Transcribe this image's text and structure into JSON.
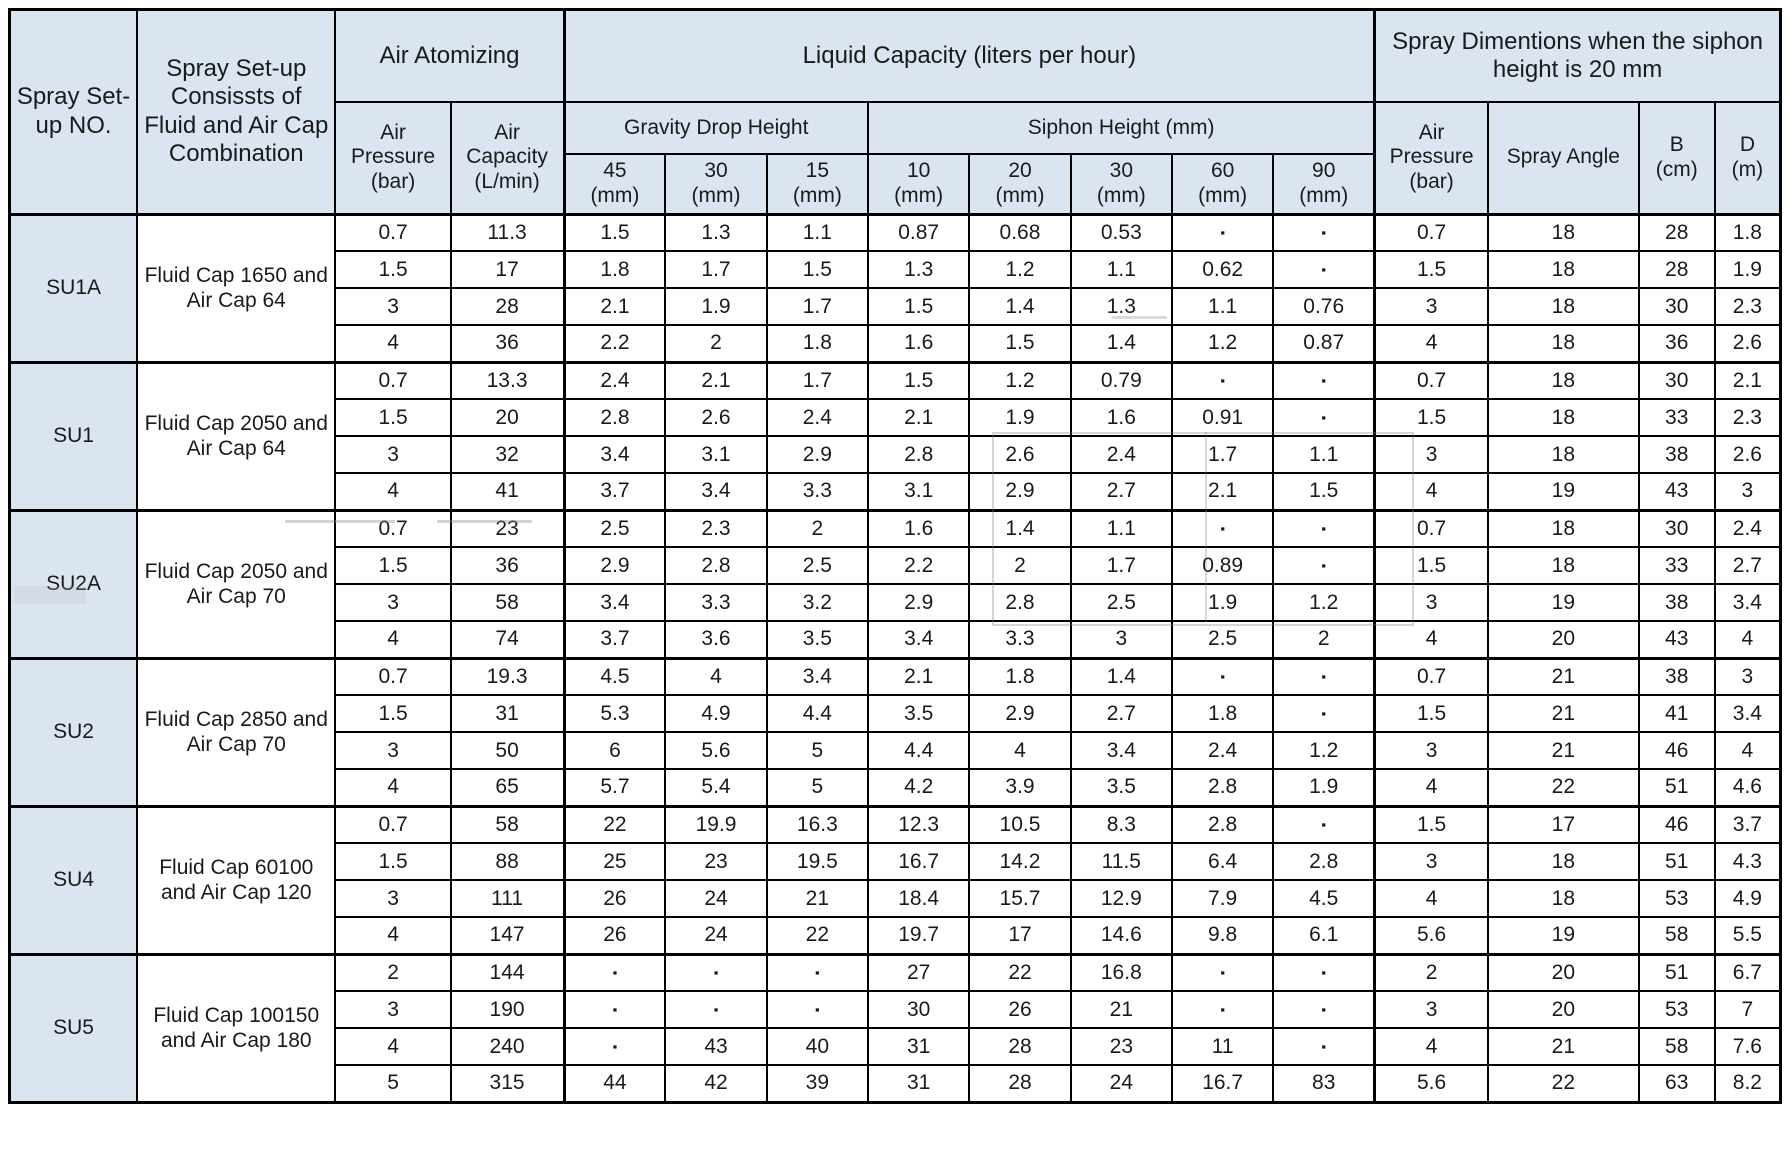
{
  "colors": {
    "header_bg": "#dbe5f1",
    "border": "#000000",
    "cell_bg": "#ffffff"
  },
  "table": {
    "header": {
      "spray_no": "Spray Set-up NO.",
      "combination": "Spray Set-up Consissts  of Fluid and Air Cap Combination",
      "air_atomizing": "Air Atomizing",
      "air_pressure": "Air Pressure (bar)",
      "air_capacity": "Air Capacity (L/min)",
      "liquid_capacity": "Liquid Capacity (liters per hour)",
      "gravity": "Gravity Drop Height",
      "siphon": "Siphon Height (mm)",
      "mm_cols": [
        {
          "v": "45",
          "u": "(mm)"
        },
        {
          "v": "30",
          "u": "(mm)"
        },
        {
          "v": "15",
          "u": "(mm)"
        },
        {
          "v": "10",
          "u": "(mm)"
        },
        {
          "v": "20",
          "u": "(mm)"
        },
        {
          "v": "30",
          "u": "(mm)"
        },
        {
          "v": "60",
          "u": "(mm)"
        },
        {
          "v": "90",
          "u": "(mm)"
        }
      ],
      "spray_dimensions": "Spray Dimentions when the siphon height is 20 mm",
      "dim_air_pressure": "Air Pressure (bar)",
      "spray_angle": "Spray  Angle",
      "b_cm": {
        "v": "B",
        "u": "(cm)"
      },
      "d_m": {
        "v": "D",
        "u": "(m)"
      }
    },
    "groups": [
      {
        "id": "SU1A",
        "cap": "Fluid Cap 1650 and Air Cap 64",
        "rows": [
          [
            "0.7",
            "11.3",
            "1.5",
            "1.3",
            "1.1",
            "0.87",
            "0.68",
            "0.53",
            "▪",
            "▪",
            "0.7",
            "18",
            "28",
            "1.8"
          ],
          [
            "1.5",
            "17",
            "1.8",
            "1.7",
            "1.5",
            "1.3",
            "1.2",
            "1.1",
            "0.62",
            "▪",
            "1.5",
            "18",
            "28",
            "1.9"
          ],
          [
            "3",
            "28",
            "2.1",
            "1.9",
            "1.7",
            "1.5",
            "1.4",
            "1.3",
            "1.1",
            "0.76",
            "3",
            "18",
            "30",
            "2.3"
          ],
          [
            "4",
            "36",
            "2.2",
            "2",
            "1.8",
            "1.6",
            "1.5",
            "1.4",
            "1.2",
            "0.87",
            "4",
            "18",
            "36",
            "2.6"
          ]
        ]
      },
      {
        "id": "SU1",
        "cap": "Fluid Cap 2050 and Air Cap 64",
        "rows": [
          [
            "0.7",
            "13.3",
            "2.4",
            "2.1",
            "1.7",
            "1.5",
            "1.2",
            "0.79",
            "▪",
            "▪",
            "0.7",
            "18",
            "30",
            "2.1"
          ],
          [
            "1.5",
            "20",
            "2.8",
            "2.6",
            "2.4",
            "2.1",
            "1.9",
            "1.6",
            "0.91",
            "▪",
            "1.5",
            "18",
            "33",
            "2.3"
          ],
          [
            "3",
            "32",
            "3.4",
            "3.1",
            "2.9",
            "2.8",
            "2.6",
            "2.4",
            "1.7",
            "1.1",
            "3",
            "18",
            "38",
            "2.6"
          ],
          [
            "4",
            "41",
            "3.7",
            "3.4",
            "3.3",
            "3.1",
            "2.9",
            "2.7",
            "2.1",
            "1.5",
            "4",
            "19",
            "43",
            "3"
          ]
        ]
      },
      {
        "id": "SU2A",
        "cap": "Fluid Cap 2050 and Air Cap 70",
        "rows": [
          [
            "0.7",
            "23",
            "2.5",
            "2.3",
            "2",
            "1.6",
            "1.4",
            "1.1",
            "▪",
            "▪",
            "0.7",
            "18",
            "30",
            "2.4"
          ],
          [
            "1.5",
            "36",
            "2.9",
            "2.8",
            "2.5",
            "2.2",
            "2",
            "1.7",
            "0.89",
            "▪",
            "1.5",
            "18",
            "33",
            "2.7"
          ],
          [
            "3",
            "58",
            "3.4",
            "3.3",
            "3.2",
            "2.9",
            "2.8",
            "2.5",
            "1.9",
            "1.2",
            "3",
            "19",
            "38",
            "3.4"
          ],
          [
            "4",
            "74",
            "3.7",
            "3.6",
            "3.5",
            "3.4",
            "3.3",
            "3",
            "2.5",
            "2",
            "4",
            "20",
            "43",
            "4"
          ]
        ]
      },
      {
        "id": "SU2",
        "cap": "Fluid Cap 2850 and Air Cap 70",
        "rows": [
          [
            "0.7",
            "19.3",
            "4.5",
            "4",
            "3.4",
            "2.1",
            "1.8",
            "1.4",
            "▪",
            "▪",
            "0.7",
            "21",
            "38",
            "3"
          ],
          [
            "1.5",
            "31",
            "5.3",
            "4.9",
            "4.4",
            "3.5",
            "2.9",
            "2.7",
            "1.8",
            "▪",
            "1.5",
            "21",
            "41",
            "3.4"
          ],
          [
            "3",
            "50",
            "6",
            "5.6",
            "5",
            "4.4",
            "4",
            "3.4",
            "2.4",
            "1.2",
            "3",
            "21",
            "46",
            "4"
          ],
          [
            "4",
            "65",
            "5.7",
            "5.4",
            "5",
            "4.2",
            "3.9",
            "3.5",
            "2.8",
            "1.9",
            "4",
            "22",
            "51",
            "4.6"
          ]
        ]
      },
      {
        "id": "SU4",
        "cap": "Fluid Cap 60100 and Air Cap 120",
        "rows": [
          [
            "0.7",
            "58",
            "22",
            "19.9",
            "16.3",
            "12.3",
            "10.5",
            "8.3",
            "2.8",
            "▪",
            "1.5",
            "17",
            "46",
            "3.7"
          ],
          [
            "1.5",
            "88",
            "25",
            "23",
            "19.5",
            "16.7",
            "14.2",
            "11.5",
            "6.4",
            "2.8",
            "3",
            "18",
            "51",
            "4.3"
          ],
          [
            "3",
            "111",
            "26",
            "24",
            "21",
            "18.4",
            "15.7",
            "12.9",
            "7.9",
            "4.5",
            "4",
            "18",
            "53",
            "4.9"
          ],
          [
            "4",
            "147",
            "26",
            "24",
            "22",
            "19.7",
            "17",
            "14.6",
            "9.8",
            "6.1",
            "5.6",
            "19",
            "58",
            "5.5"
          ]
        ]
      },
      {
        "id": "SU5",
        "cap": "Fluid Cap 100150    and Air Cap 180",
        "rows": [
          [
            "2",
            "144",
            "▪",
            "▪",
            "▪",
            "27",
            "22",
            "16.8",
            "▪",
            "▪",
            "2",
            "20",
            "51",
            "6.7"
          ],
          [
            "3",
            "190",
            "▪",
            "▪",
            "▪",
            "30",
            "26",
            "21",
            "▪",
            "▪",
            "3",
            "20",
            "53",
            "7"
          ],
          [
            "4",
            "240",
            "▪",
            "43",
            "40",
            "31",
            "28",
            "23",
            "11",
            "▪",
            "4",
            "21",
            "58",
            "7.6"
          ],
          [
            "5",
            "315",
            "44",
            "42",
            "39",
            "31",
            "28",
            "24",
            "16.7",
            "83",
            "5.6",
            "22",
            "63",
            "8.2"
          ]
        ]
      }
    ]
  }
}
